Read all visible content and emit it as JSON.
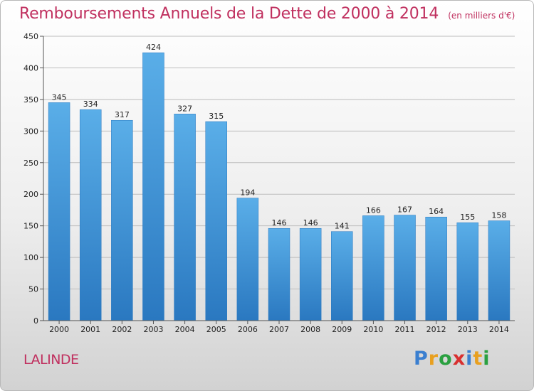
{
  "header": {
    "title": "Remboursements Annuels de la Dette de 2000 à 2014",
    "unit": "(en milliers d'€)"
  },
  "footer": {
    "commune": "LALINDE",
    "logo_text": "Proxiti"
  },
  "colors": {
    "title": "#c0305f",
    "bar_top": "#5aaee8",
    "bar_bottom": "#2a78c0"
  },
  "chart_data": {
    "type": "bar",
    "title": "Remboursements Annuels de la Dette de 2000 à 2014",
    "subtitle": "(en milliers d'€)",
    "xlabel": "",
    "ylabel": "",
    "categories": [
      "2000",
      "2001",
      "2002",
      "2003",
      "2004",
      "2005",
      "2006",
      "2007",
      "2008",
      "2009",
      "2010",
      "2011",
      "2012",
      "2013",
      "2014"
    ],
    "values": [
      345,
      334,
      317,
      424,
      327,
      315,
      194,
      146,
      146,
      141,
      166,
      167,
      164,
      155,
      158
    ],
    "ylim": [
      0,
      450
    ],
    "yticks": [
      0,
      50,
      100,
      150,
      200,
      250,
      300,
      350,
      400,
      450
    ],
    "grid": true,
    "legend": "none"
  }
}
